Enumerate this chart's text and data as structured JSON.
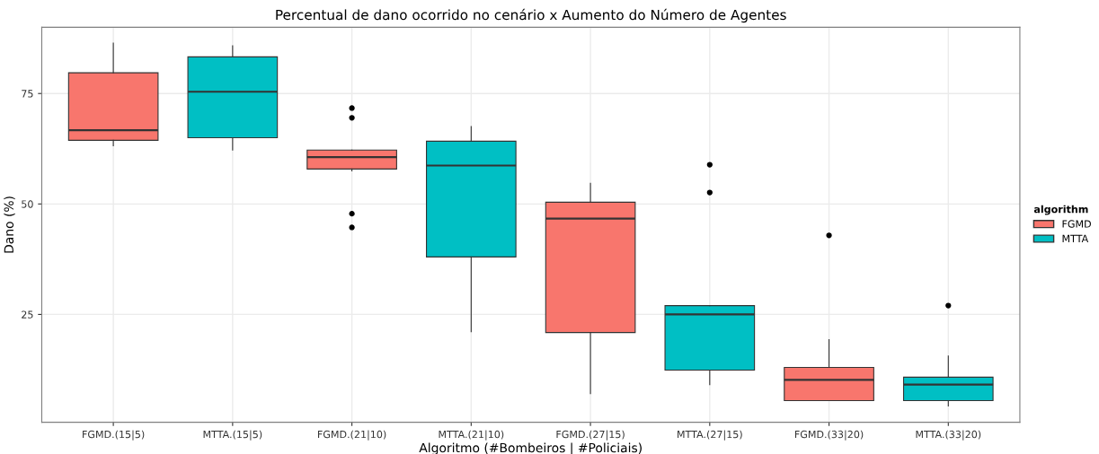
{
  "chart_data": {
    "type": "box",
    "title": "Percentual de dano ocorrido no cenário x Aumento do Número de Agentes",
    "xlabel": "Algoritmo (#Bombeiros | #Policiais)",
    "ylabel": "Dano (%)",
    "legend_title": "algorithm",
    "categories": [
      "FGMD.(15|5)",
      "MTTA.(15|5)",
      "FGMD.(21|10)",
      "MTTA.(21|10)",
      "FGMD.(27|15)",
      "MTTA.(27|15)",
      "FGMD.(33|20)",
      "MTTA.(33|20)"
    ],
    "series": [
      {
        "name": "FGMD",
        "color": "#f8766d",
        "boxes": [
          {
            "low": 63.2,
            "q1": 64.4,
            "median": 66.7,
            "q3": 79.7,
            "high": 86.4
          },
          null,
          {
            "low": 57.5,
            "q1": 57.9,
            "median": 60.6,
            "q3": 62.2,
            "high": 62.2,
            "outliers": [
              71.7,
              69.5,
              47.8,
              44.7
            ]
          },
          null,
          {
            "low": 7.1,
            "q1": 20.9,
            "median": 46.7,
            "q3": 50.4,
            "high": 54.7
          },
          null,
          {
            "low": 5.5,
            "q1": 5.5,
            "median": 10.2,
            "q3": 13.0,
            "high": 19.3,
            "outliers": [
              42.9
            ]
          },
          null
        ]
      },
      {
        "name": "MTTA",
        "color": "#00bfc4",
        "boxes": [
          null,
          {
            "low": 62.2,
            "q1": 65.0,
            "median": 75.4,
            "q3": 83.3,
            "high": 85.8
          },
          null,
          {
            "low": 21.1,
            "q1": 38.0,
            "median": 58.7,
            "q3": 64.2,
            "high": 67.5
          },
          null,
          {
            "low": 9.1,
            "q1": 12.4,
            "median": 25.0,
            "q3": 27.0,
            "high": 27.0,
            "outliers": [
              58.9,
              52.6
            ]
          },
          null,
          {
            "low": 4.3,
            "q1": 5.5,
            "median": 9.1,
            "q3": 10.8,
            "high": 15.6,
            "outliers": [
              27.0
            ]
          }
        ]
      }
    ],
    "ylim": [
      0.6,
      90
    ],
    "yticks": [
      25,
      50,
      75
    ],
    "grid": true,
    "legend": "right"
  }
}
